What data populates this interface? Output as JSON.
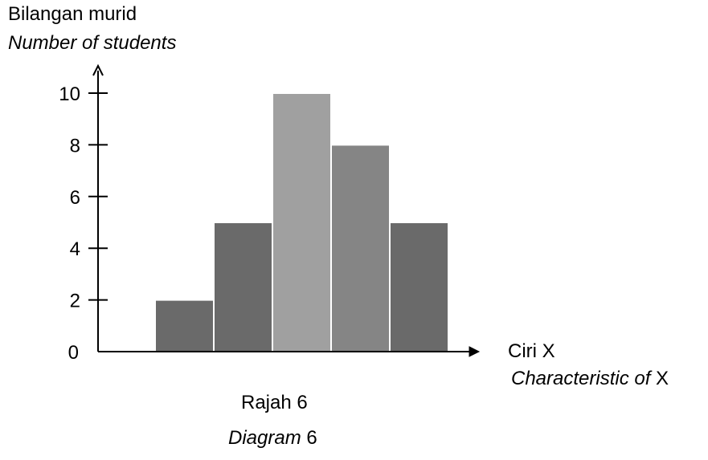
{
  "chart_data": {
    "type": "bar",
    "title": "",
    "ylabel_malay": "Bilangan murid",
    "ylabel_english": "Number of students",
    "xlabel_malay": "Ciri X",
    "xlabel_english_italic": "Characteristic of",
    "xlabel_english_plain": " X",
    "caption_malay": "Rajah 6",
    "caption_english_italic": "Diagram",
    "caption_english_plain": " 6",
    "y_ticks": [
      0,
      2,
      4,
      6,
      8,
      10
    ],
    "ylim": [
      0,
      10
    ],
    "values": [
      2,
      5,
      10,
      8,
      5
    ],
    "bar_colors": [
      "#6a6a6a",
      "#6a6a6a",
      "#a0a0a0",
      "#858585",
      "#6a6a6a"
    ],
    "grid": false
  }
}
